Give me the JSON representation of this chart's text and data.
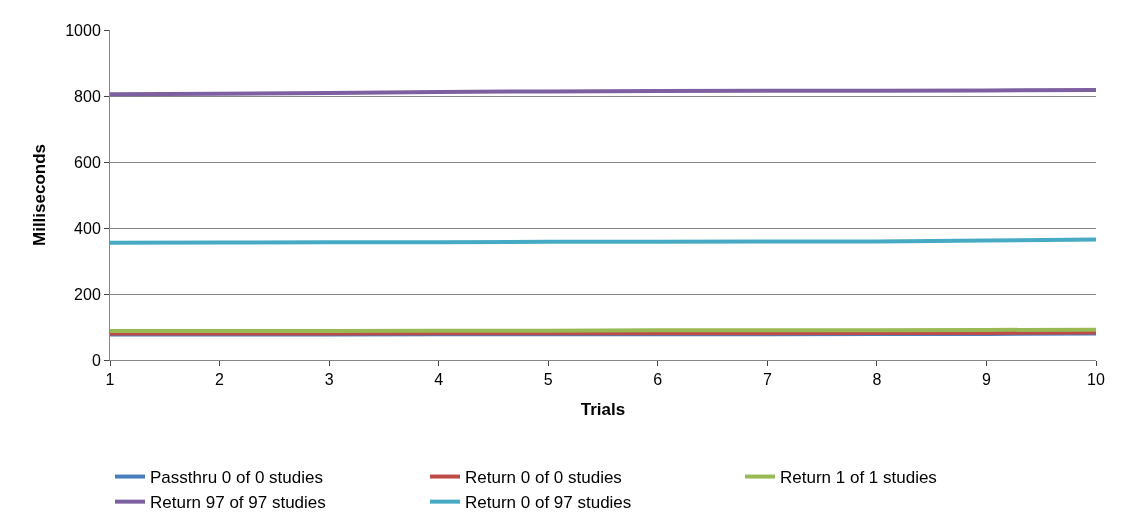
{
  "chart_data": {
    "type": "line",
    "xlabel": "Trials",
    "ylabel": "Milliseconds",
    "categories": [
      "1",
      "2",
      "3",
      "4",
      "5",
      "6",
      "7",
      "8",
      "9",
      "10"
    ],
    "ylim": [
      0,
      1000
    ],
    "yticks": [
      0,
      200,
      400,
      600,
      800,
      1000
    ],
    "grid": "y",
    "legend": "bottom",
    "marker": "none",
    "series": [
      {
        "name": "Passthru 0 of 0 studies",
        "color": "#4a7ebb",
        "values": [
          77,
          77,
          77,
          78,
          78,
          78,
          78,
          79,
          79,
          80
        ]
      },
      {
        "name": "Return 0 of 0 studies",
        "color": "#be4b48",
        "values": [
          80,
          80,
          80,
          81,
          81,
          81,
          81,
          82,
          82,
          83
        ]
      },
      {
        "name": "Return 1 of 1 studies",
        "color": "#98b954",
        "values": [
          88,
          88,
          88,
          89,
          89,
          90,
          90,
          90,
          91,
          92
        ]
      },
      {
        "name": "Return 97 of 97 studies",
        "color": "#7d60a0",
        "values": [
          805,
          807,
          809,
          812,
          814,
          815,
          816,
          816,
          817,
          818
        ]
      },
      {
        "name": "Return 0 of 97 studies",
        "color": "#46aac5",
        "values": [
          355,
          356,
          357,
          357,
          358,
          358,
          359,
          359,
          362,
          365
        ]
      }
    ]
  }
}
